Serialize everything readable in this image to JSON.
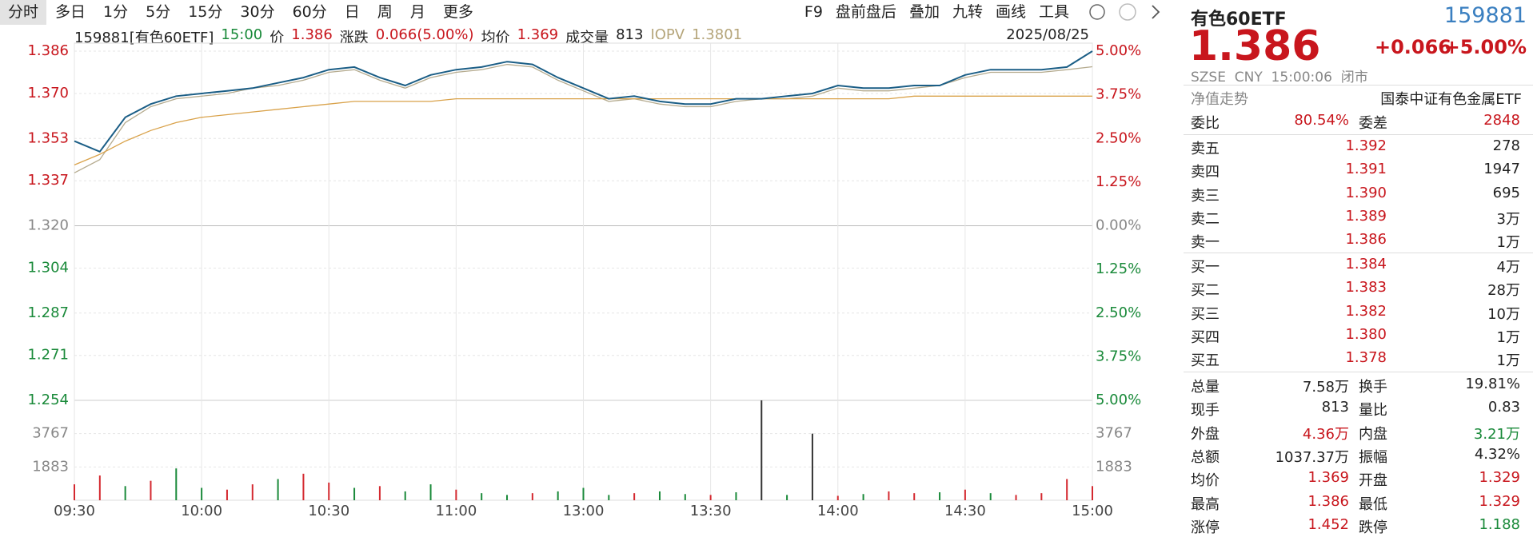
{
  "toolbar": {
    "periods": [
      "分时",
      "多日",
      "1分",
      "5分",
      "15分",
      "30分",
      "60分",
      "日",
      "周",
      "月",
      "更多"
    ],
    "tools": [
      "F9",
      "盘前盘后",
      "叠加",
      "九转",
      "画线",
      "工具"
    ]
  },
  "info_bar": {
    "code_name": "159881[有色60ETF]",
    "time": "15:00",
    "price": "1.386",
    "change_label": "涨跌",
    "change": "0.066(5.00%)",
    "avg": "1.369",
    "volume_label": "成交量",
    "volume": "813",
    "iopv": "1.3801",
    "date": "2025/08/25"
  },
  "chart_data": {
    "type": "line",
    "categories": [
      "09:30",
      "09:36",
      "09:42",
      "09:48",
      "09:54",
      "10:00",
      "10:06",
      "10:12",
      "10:18",
      "10:24",
      "10:30",
      "10:36",
      "10:42",
      "10:48",
      "10:54",
      "11:00",
      "11:06",
      "11:12",
      "11:18",
      "11:24",
      "13:00",
      "13:06",
      "13:12",
      "13:18",
      "13:24",
      "13:30",
      "13:36",
      "13:42",
      "13:48",
      "13:54",
      "14:00",
      "14:06",
      "14:12",
      "14:18",
      "14:24",
      "14:30",
      "14:36",
      "14:42",
      "14:48",
      "14:54",
      "15:00"
    ],
    "xticks": [
      "09:30",
      "10:00",
      "10:30",
      "11:00",
      "13:00",
      "13:30",
      "14:00",
      "14:30",
      "15:00"
    ],
    "ylim": [
      1.254,
      1.386
    ],
    "yticks": [
      1.386,
      {
        "value": 1.37,
        "label": "1.370"
      },
      1.353,
      1.337,
      {
        "value": 1.32,
        "label": "1.320"
      },
      1.304,
      1.287,
      1.271,
      1.254
    ],
    "y2lim": [
      -5,
      5
    ],
    "y2ticks": [
      {
        "value": 5,
        "label": "5.00%"
      },
      {
        "value": 3.75,
        "label": "3.75%"
      },
      {
        "value": 2.5,
        "label": "2.50%"
      },
      {
        "value": 1.25,
        "label": "1.25%"
      },
      {
        "value": 0,
        "label": "0.00%"
      },
      {
        "value": -1.25,
        "label": "1.25%"
      },
      {
        "value": -2.5,
        "label": "2.50%"
      },
      {
        "value": -3.75,
        "label": "3.75%"
      },
      {
        "value": -5,
        "label": "5.00%"
      }
    ],
    "grid": true,
    "series": [
      {
        "name": "价",
        "color": "#1b5e86",
        "values": [
          1.352,
          1.348,
          1.361,
          1.366,
          1.369,
          1.37,
          1.371,
          1.372,
          1.374,
          1.376,
          1.379,
          1.38,
          1.376,
          1.373,
          1.377,
          1.379,
          1.38,
          1.382,
          1.381,
          1.376,
          1.372,
          1.368,
          1.369,
          1.367,
          1.366,
          1.366,
          1.368,
          1.368,
          1.369,
          1.37,
          1.373,
          1.372,
          1.372,
          1.373,
          1.373,
          1.377,
          1.379,
          1.379,
          1.379,
          1.38,
          1.386
        ]
      },
      {
        "name": "均价",
        "color": "#d9a24a",
        "values": [
          1.343,
          1.347,
          1.352,
          1.356,
          1.359,
          1.361,
          1.362,
          1.363,
          1.364,
          1.365,
          1.366,
          1.367,
          1.367,
          1.367,
          1.367,
          1.368,
          1.368,
          1.368,
          1.368,
          1.368,
          1.368,
          1.368,
          1.368,
          1.368,
          1.368,
          1.368,
          1.368,
          1.368,
          1.368,
          1.368,
          1.368,
          1.368,
          1.368,
          1.369,
          1.369,
          1.369,
          1.369,
          1.369,
          1.369,
          1.369,
          1.369
        ]
      },
      {
        "name": "IOPV",
        "color": "#b5ab8f",
        "values": [
          1.34,
          1.345,
          1.359,
          1.365,
          1.368,
          1.369,
          1.37,
          1.372,
          1.373,
          1.375,
          1.378,
          1.379,
          1.375,
          1.372,
          1.376,
          1.378,
          1.379,
          1.381,
          1.38,
          1.375,
          1.371,
          1.367,
          1.368,
          1.366,
          1.365,
          1.365,
          1.367,
          1.368,
          1.368,
          1.369,
          1.372,
          1.371,
          1.371,
          1.372,
          1.373,
          1.376,
          1.378,
          1.378,
          1.378,
          1.379,
          1.3801
        ]
      }
    ],
    "volume": {
      "type": "bar",
      "ylim": [
        0,
        5650
      ],
      "yticks": [
        1883,
        3767
      ],
      "values": [
        900,
        1400,
        800,
        1100,
        1800,
        700,
        600,
        900,
        1200,
        1500,
        1000,
        700,
        800,
        500,
        900,
        600,
        400,
        300,
        400,
        500,
        700,
        300,
        400,
        500,
        350,
        300,
        450,
        5650,
        300,
        3767,
        250,
        350,
        500,
        400,
        450,
        600,
        400,
        300,
        400,
        1200,
        800
      ],
      "colors": [
        "#d4282f",
        "#d4282f",
        "#1a8a3a",
        "#d4282f",
        "#1a8a3a",
        "#1a8a3a",
        "#d4282f",
        "#d4282f",
        "#1a8a3a",
        "#d4282f",
        "#d4282f",
        "#1a8a3a",
        "#d4282f",
        "#1a8a3a",
        "#1a8a3a",
        "#d4282f",
        "#1a8a3a",
        "#1a8a3a",
        "#d4282f",
        "#1a8a3a",
        "#1a8a3a",
        "#1a8a3a",
        "#d4282f",
        "#1a8a3a",
        "#1a8a3a",
        "#d4282f",
        "#1a8a3a",
        "#333333",
        "#1a8a3a",
        "#333333",
        "#d4282f",
        "#1a8a3a",
        "#d4282f",
        "#d4282f",
        "#1a8a3a",
        "#d4282f",
        "#1a8a3a",
        "#d4282f",
        "#d4282f",
        "#d4282f",
        "#d4282f"
      ]
    }
  },
  "quote_panel": {
    "name": "有色60ETF",
    "code": "159881",
    "price": "1.386",
    "change": "+0.066",
    "change_pct": "+5.00%",
    "status_line": "SZSE  CNY  15:00:06  闭市",
    "nav_label": "净值走势",
    "fund_name": "国泰中证有色金属ETF",
    "ratio_row": [
      "委比",
      "80.54%",
      "委差",
      "2848"
    ],
    "asks": [
      [
        "卖五",
        "1.392",
        "278"
      ],
      [
        "卖四",
        "1.391",
        "1947"
      ],
      [
        "卖三",
        "1.390",
        "695"
      ],
      [
        "卖二",
        "1.389",
        "3万"
      ],
      [
        "卖一",
        "1.386",
        "1万"
      ]
    ],
    "bids": [
      [
        "买一",
        "1.384",
        "4万"
      ],
      [
        "买二",
        "1.383",
        "28万"
      ],
      [
        "买三",
        "1.382",
        "10万"
      ],
      [
        "买四",
        "1.380",
        "1万"
      ],
      [
        "买五",
        "1.378",
        "1万"
      ]
    ],
    "stats": [
      {
        "cells": [
          "总量",
          "7.58万",
          "换手",
          "19.81%"
        ],
        "colors": [
          "#222",
          "#222"
        ]
      },
      {
        "cells": [
          "现手",
          "813",
          "量比",
          "0.83"
        ],
        "colors": [
          "#222",
          "#222"
        ]
      },
      {
        "cells": [
          "外盘",
          "4.36万",
          "内盘",
          "3.21万"
        ],
        "colors": [
          "#c8161d",
          "#1a8a3a"
        ]
      },
      {
        "cells": [
          "总额",
          "1037.37万",
          "振幅",
          "4.32%"
        ],
        "colors": [
          "#222",
          "#222"
        ]
      },
      {
        "cells": [
          "均价",
          "1.369",
          "开盘",
          "1.329"
        ],
        "colors": [
          "#c8161d",
          "#c8161d"
        ]
      },
      {
        "cells": [
          "最高",
          "1.386",
          "最低",
          "1.329"
        ],
        "colors": [
          "#c8161d",
          "#c8161d"
        ]
      },
      {
        "cells": [
          "涨停",
          "1.452",
          "跌停",
          "1.188"
        ],
        "colors": [
          "#c8161d",
          "#1a8a3a"
        ]
      }
    ]
  }
}
